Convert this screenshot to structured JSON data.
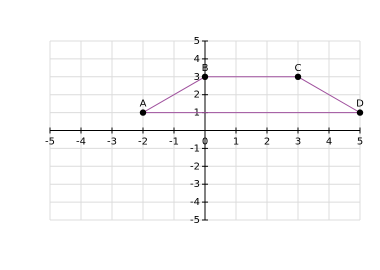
{
  "chart_data": {
    "type": "polygon",
    "x": [
      -2,
      0,
      3,
      5
    ],
    "values": [
      1,
      3,
      3,
      1
    ],
    "point_labels": [
      "A",
      "B",
      "C",
      "D"
    ],
    "color": "#a0529e",
    "point_color": "#000000",
    "xlim": [
      -5,
      5
    ],
    "ylim": [
      -5,
      5
    ],
    "xticks": [
      -5,
      -4,
      -3,
      -2,
      -1,
      0,
      1,
      2,
      3,
      4,
      5
    ],
    "yticks": [
      -5,
      -4,
      -3,
      -2,
      -1,
      1,
      2,
      3,
      4,
      5
    ],
    "grid": true
  }
}
